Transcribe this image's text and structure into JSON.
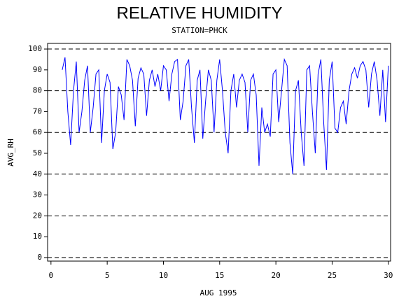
{
  "chart_data": {
    "type": "line",
    "title": "RELATIVE HUMIDITY",
    "subtitle": "STATION=PHCK",
    "x_label": "AUG 1995",
    "y_label": "AVG_RH",
    "xlim": [
      -0.3,
      30.2
    ],
    "ylim": [
      -1.7,
      102.7
    ],
    "xticks": [
      0,
      5,
      10,
      15,
      20,
      25,
      30
    ],
    "yticks": [
      0,
      10,
      20,
      30,
      40,
      50,
      60,
      70,
      80,
      90,
      100
    ],
    "ygrid": [
      0,
      20,
      40,
      60,
      80,
      100
    ],
    "x": [
      1,
      1.25,
      1.5,
      1.75,
      2,
      2.25,
      2.5,
      2.75,
      3,
      3.25,
      3.5,
      3.75,
      4,
      4.25,
      4.5,
      4.75,
      5,
      5.25,
      5.5,
      5.75,
      6,
      6.25,
      6.5,
      6.75,
      7,
      7.25,
      7.5,
      7.75,
      8,
      8.25,
      8.5,
      8.75,
      9,
      9.25,
      9.5,
      9.75,
      10,
      10.25,
      10.5,
      10.75,
      11,
      11.25,
      11.5,
      11.75,
      12,
      12.25,
      12.5,
      12.75,
      13,
      13.25,
      13.5,
      13.75,
      14,
      14.25,
      14.5,
      14.75,
      15,
      15.25,
      15.5,
      15.75,
      16,
      16.25,
      16.5,
      16.75,
      17,
      17.25,
      17.5,
      17.75,
      18,
      18.25,
      18.5,
      18.75,
      19,
      19.25,
      19.5,
      19.75,
      20,
      20.25,
      20.5,
      20.75,
      21,
      21.25,
      21.5,
      21.75,
      22,
      22.25,
      22.5,
      22.75,
      23,
      23.25,
      23.5,
      23.75,
      24,
      24.25,
      24.5,
      24.75,
      25,
      25.25,
      25.5,
      25.75,
      26,
      26.25,
      26.5,
      26.75,
      27,
      27.25,
      27.5,
      27.75,
      28,
      28.25,
      28.5,
      28.75,
      29,
      29.25,
      29.5,
      29.75,
      30
    ],
    "series": [
      {
        "color": "#0000ff",
        "values": [
          90,
          96,
          70,
          54,
          80,
          94,
          60,
          70,
          85,
          92,
          60,
          72,
          88,
          90,
          55,
          80,
          88,
          84,
          52,
          60,
          82,
          78,
          66,
          95,
          92,
          85,
          63,
          86,
          91,
          88,
          68,
          85,
          90,
          82,
          88,
          80,
          92,
          90,
          75,
          88,
          94,
          95,
          66,
          75,
          92,
          95,
          72,
          55,
          85,
          90,
          57,
          75,
          90,
          85,
          60,
          85,
          95,
          80,
          60,
          50,
          80,
          88,
          72,
          85,
          88,
          84,
          60,
          85,
          88,
          78,
          44,
          72,
          60,
          64,
          58,
          88,
          90,
          65,
          80,
          95,
          92,
          55,
          40,
          80,
          85,
          60,
          44,
          90,
          92,
          70,
          50,
          88,
          95,
          65,
          42,
          85,
          94,
          62,
          60,
          72,
          75,
          64,
          80,
          88,
          91,
          86,
          92,
          94,
          90,
          72,
          88,
          94,
          85,
          68,
          90,
          65,
          92
        ]
      }
    ]
  }
}
